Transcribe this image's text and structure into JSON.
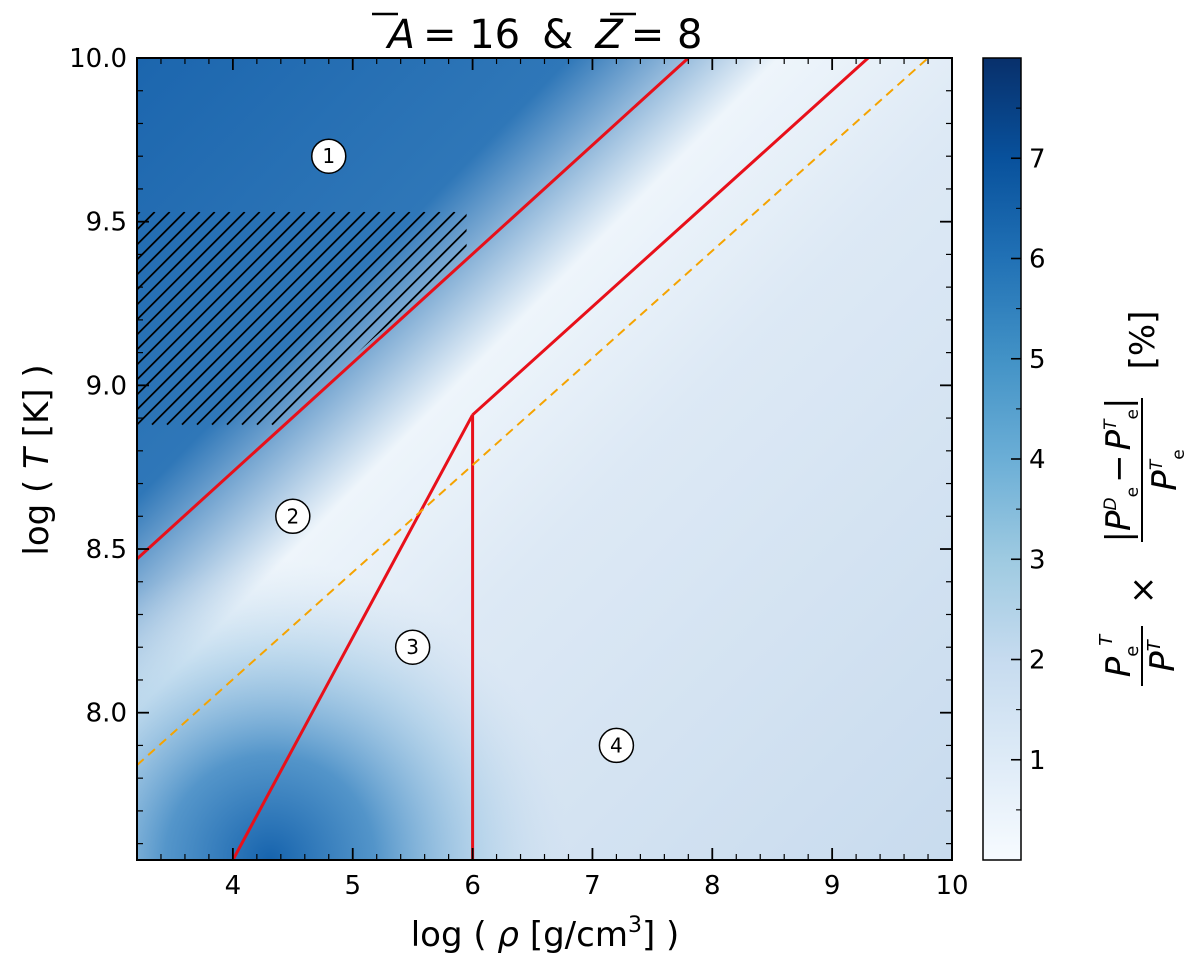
{
  "chart_data": {
    "type": "heatmap",
    "title_parts": {
      "a_sym": "A",
      "a_val": "= 16",
      "amp": "&",
      "z_sym": "Z",
      "z_val": "= 8"
    },
    "xlabel_parts": {
      "pre": "log ( ",
      "rho": "ρ",
      "unit": " [g/cm",
      "exp": "3",
      "post": "] )"
    },
    "ylabel_parts": {
      "pre": "log ( ",
      "T": "T",
      "post": " [K] )"
    },
    "xlim": [
      3.2,
      10.0
    ],
    "ylim": [
      7.55,
      10.0
    ],
    "x_ticks": [
      4,
      5,
      6,
      7,
      8,
      9,
      10
    ],
    "x_tick_labels": [
      "4",
      "5",
      "6",
      "7",
      "8",
      "9",
      "10"
    ],
    "y_ticks": [
      8.0,
      8.5,
      9.0,
      9.5,
      10.0
    ],
    "y_tick_labels": [
      "8.0",
      "8.5",
      "9.0",
      "9.5",
      "10.0"
    ],
    "colorbar": {
      "range": [
        0,
        8
      ],
      "ticks": [
        1,
        2,
        3,
        4,
        5,
        6,
        7
      ],
      "tick_labels": [
        "1",
        "2",
        "3",
        "4",
        "5",
        "6",
        "7"
      ],
      "colors": [
        "#f7fbff",
        "#deebf7",
        "#c6dbef",
        "#9ecae1",
        "#6baed6",
        "#4292c6",
        "#2171b5",
        "#08519c",
        "#08306b"
      ],
      "label_parts": {
        "p": "P",
        "e": "e",
        "T": "T",
        "times": "×",
        "D": "D",
        "minus": "−",
        "pct": "[%]"
      }
    },
    "lines": [
      {
        "name": "",
        "color": "#e8101a",
        "style": "solid",
        "x": [
          3.2,
          7.8
        ],
        "y": [
          8.47,
          10.0
        ]
      },
      {
        "name": "",
        "color": "#e8101a",
        "style": "solid",
        "x": [
          6.0,
          9.3
        ],
        "y": [
          8.91,
          10.0
        ]
      },
      {
        "name": "",
        "color": "#e8101a",
        "style": "solid",
        "x": [
          4.0,
          6.0
        ],
        "y": [
          7.55,
          8.91
        ]
      },
      {
        "name": "",
        "color": "#e8101a",
        "style": "solid",
        "x": [
          6.0,
          6.0
        ],
        "y": [
          7.55,
          8.91
        ]
      },
      {
        "name": "",
        "color": "#f5a300",
        "style": "dashed",
        "x": [
          3.2,
          9.8
        ],
        "y": [
          7.84,
          10.0
        ]
      }
    ],
    "hatched_region": {
      "x": [
        3.2,
        5.95
      ],
      "y": [
        8.88,
        9.53
      ]
    },
    "regions": [
      {
        "label": "1",
        "x": 4.8,
        "y": 9.7
      },
      {
        "label": "2",
        "x": 4.5,
        "y": 8.6
      },
      {
        "label": "3",
        "x": 5.5,
        "y": 8.2
      },
      {
        "label": "4",
        "x": 7.2,
        "y": 7.9
      }
    ],
    "grid": false
  }
}
